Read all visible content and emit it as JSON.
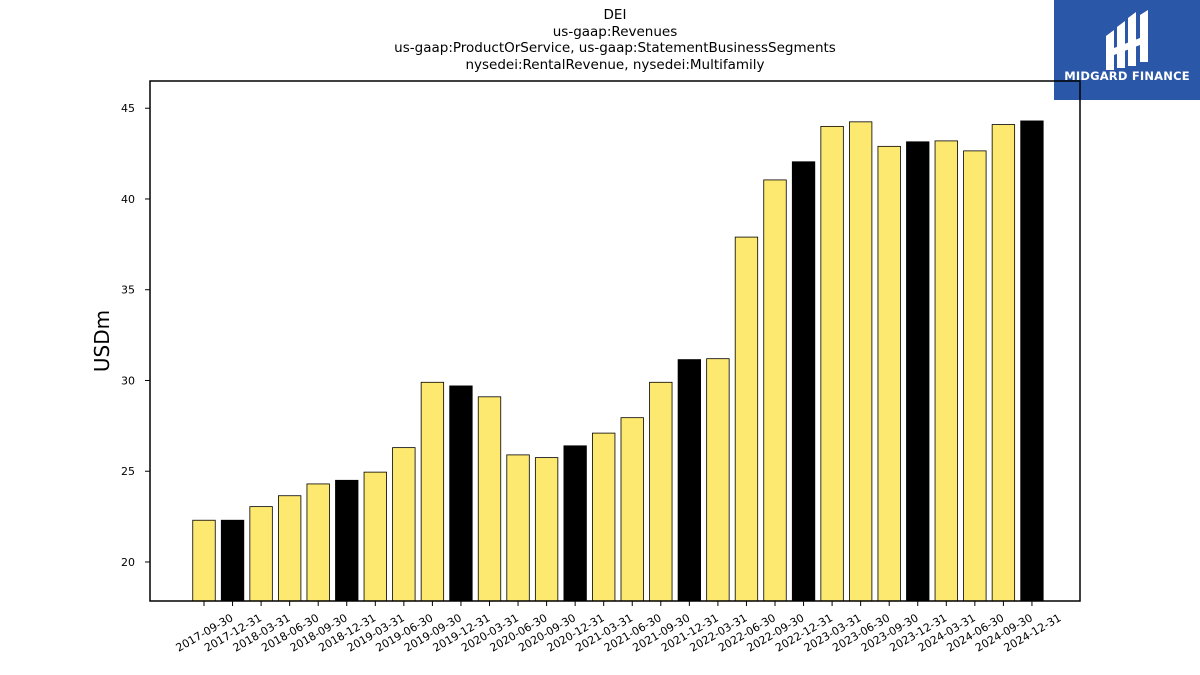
{
  "chart_data": {
    "type": "bar",
    "title_lines": [
      "DEI",
      "us-gaap:Revenues",
      "us-gaap:ProductOrService, us-gaap:StatementBusinessSegments",
      "nysedei:RentalRevenue, nysedei:Multifamily"
    ],
    "xlabel": "",
    "ylabel": "USDm",
    "ylim": [
      17.85,
      46.5
    ],
    "yticks": [
      20,
      25,
      30,
      35,
      40,
      45
    ],
    "categories": [
      "2017-09-30",
      "2017-12-31",
      "2018-03-31",
      "2018-06-30",
      "2018-09-30",
      "2018-12-31",
      "2019-03-31",
      "2019-06-30",
      "2019-09-30",
      "2019-12-31",
      "2020-03-31",
      "2020-06-30",
      "2020-09-30",
      "2020-12-31",
      "2021-03-31",
      "2021-06-30",
      "2021-09-30",
      "2021-12-31",
      "2022-03-31",
      "2022-06-30",
      "2022-09-30",
      "2022-12-31",
      "2023-03-31",
      "2023-06-30",
      "2023-09-30",
      "2023-12-31",
      "2024-03-31",
      "2024-06-30",
      "2024-09-30",
      "2024-12-31"
    ],
    "values": [
      22.3,
      22.3,
      23.05,
      23.65,
      24.3,
      24.5,
      24.95,
      26.3,
      29.9,
      29.7,
      29.1,
      25.9,
      25.75,
      26.4,
      27.1,
      27.95,
      29.9,
      31.15,
      31.2,
      37.9,
      41.05,
      42.05,
      44.0,
      44.25,
      42.9,
      43.15,
      43.2,
      42.65,
      44.1,
      44.3
    ],
    "colors": {
      "quarter_bar": "#fde870",
      "year_end_bar": "#000000",
      "bar_edge": "#000000"
    },
    "grid": false,
    "legend": "none"
  },
  "logo": {
    "text": "MIDGARD FINANCE",
    "background": "#2b57a8"
  }
}
